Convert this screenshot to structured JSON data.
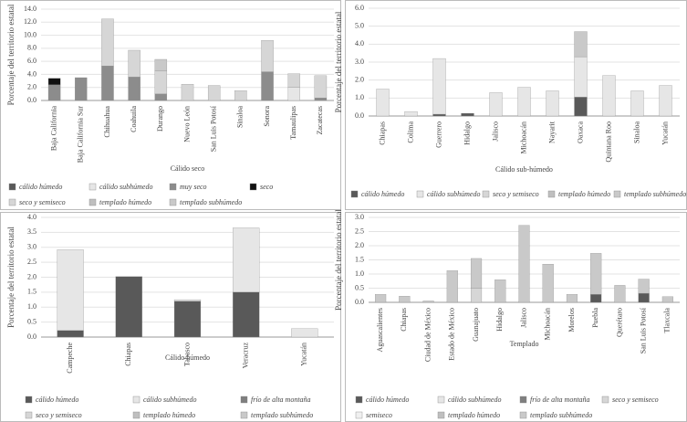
{
  "chart_data": [
    {
      "type": "bar",
      "stacked": true,
      "x_label": "Cálido seco",
      "y_label": "Porcentaje del territorio estatal",
      "categories": [
        "Baja California",
        "Baja California Sur",
        "Chihuahua",
        "Coahuila",
        "Durango",
        "Nuevo León",
        "San Luis Potosí",
        "Sinaloa",
        "Sonora",
        "Tamaulipas",
        "Zacatecas"
      ],
      "series": [
        {
          "name": "cálido húmedo",
          "color": "#595959",
          "values": [
            0,
            0,
            0,
            0,
            0,
            0,
            0,
            0,
            0,
            0,
            0
          ]
        },
        {
          "name": "cálido subhúmedo",
          "color": "#e6e6e6",
          "values": [
            0,
            0,
            0,
            0,
            0,
            0,
            0,
            0,
            0,
            2.0,
            0
          ]
        },
        {
          "name": "muy seco",
          "color": "#8c8c8c",
          "values": [
            2.4,
            3.5,
            5.3,
            3.6,
            1.0,
            0,
            0,
            0,
            4.4,
            0,
            0.4
          ]
        },
        {
          "name": "seco",
          "color": "#111111",
          "values": [
            1.0,
            0,
            0,
            0,
            0,
            0,
            0,
            0,
            0,
            0,
            0
          ]
        },
        {
          "name": "seco y semiseco",
          "color": "#d6d6d6",
          "values": [
            0,
            0,
            7.2,
            4.1,
            3.5,
            2.5,
            2.3,
            1.5,
            4.8,
            2.1,
            3.4
          ]
        },
        {
          "name": "templado húmedo",
          "color": "#bfbfbf",
          "values": [
            0,
            0,
            0,
            0,
            0,
            0,
            0,
            0,
            0,
            0,
            0
          ]
        },
        {
          "name": "templado subhúmedo",
          "color": "#c9c9c9",
          "values": [
            0,
            0,
            0,
            0,
            1.8,
            0,
            0,
            0,
            0,
            0,
            0
          ]
        }
      ],
      "ylim": [
        0,
        14
      ],
      "yticks": [
        {
          "value": 0,
          "label": "0.0"
        },
        {
          "value": 2,
          "label": "2.0"
        },
        {
          "value": 4,
          "label": "4.0"
        },
        {
          "value": 6,
          "label": "6.0"
        },
        {
          "value": 8,
          "label": "8.0"
        },
        {
          "value": 10,
          "label": "10.0"
        },
        {
          "value": 12,
          "label": "12.0"
        },
        {
          "value": 14,
          "label": "14.0"
        }
      ],
      "grid": true,
      "legend": "bottom"
    },
    {
      "type": "bar",
      "stacked": true,
      "x_label": "Cálido sub-húmedo",
      "y_label": "Porcentaje del territorio estatal",
      "categories": [
        "Chiapas",
        "Colima",
        "Guerrero",
        "Hidalgo",
        "Jalisco",
        "Michoacán",
        "Nayarit",
        "Oaxaca",
        "Quintana Roo",
        "Sinaloa",
        "Yucatán"
      ],
      "series": [
        {
          "name": "cálido húmedo",
          "color": "#595959",
          "values": [
            0,
            0,
            0.1,
            0.15,
            0,
            0,
            0,
            1.05,
            0,
            0,
            0
          ]
        },
        {
          "name": "cálido subhúmedo",
          "color": "#e6e6e6",
          "values": [
            1.5,
            0.25,
            3.1,
            0,
            1.3,
            1.6,
            1.4,
            2.25,
            2.25,
            1.4,
            1.7
          ]
        },
        {
          "name": "seco y semiseco",
          "color": "#d6d6d6",
          "values": [
            0,
            0,
            0,
            0,
            0,
            0,
            0,
            0,
            0,
            0,
            0
          ]
        },
        {
          "name": "templado húmedo",
          "color": "#bfbfbf",
          "values": [
            0,
            0,
            0,
            0,
            0,
            0,
            0,
            0,
            0,
            0,
            0
          ]
        },
        {
          "name": "templado subhúmedo",
          "color": "#c9c9c9",
          "values": [
            0,
            0,
            0,
            0,
            0,
            0,
            0,
            1.4,
            0,
            0,
            0
          ]
        }
      ],
      "ylim": [
        0,
        6
      ],
      "yticks": [
        {
          "value": 0,
          "label": "0.0"
        },
        {
          "value": 1,
          "label": "1.0"
        },
        {
          "value": 2,
          "label": "2.0"
        },
        {
          "value": 3,
          "label": "3.0"
        },
        {
          "value": 4,
          "label": "4.0"
        },
        {
          "value": 5,
          "label": "5.0"
        },
        {
          "value": 6,
          "label": "6.0"
        }
      ],
      "grid": true,
      "legend": "bottom"
    },
    {
      "type": "bar",
      "stacked": true,
      "x_label": "Cálido húmedo",
      "y_label": "Porcentaje del territorio estatal",
      "categories": [
        "Campeche",
        "Chiapas",
        "Tabasco",
        "Veracruz",
        "Yucatán"
      ],
      "series": [
        {
          "name": "cálido húmedo",
          "color": "#595959",
          "values": [
            0.22,
            2.02,
            1.2,
            1.5,
            0
          ]
        },
        {
          "name": "cálido subhúmedo",
          "color": "#e6e6e6",
          "values": [
            2.7,
            0,
            0.05,
            2.15,
            0.28
          ]
        },
        {
          "name": "frío de alta montaña",
          "color": "#7f7f7f",
          "values": [
            0,
            0,
            0,
            0,
            0
          ]
        },
        {
          "name": "seco y semiseco",
          "color": "#d6d6d6",
          "values": [
            0,
            0,
            0,
            0,
            0
          ]
        },
        {
          "name": "templado húmedo",
          "color": "#bfbfbf",
          "values": [
            0,
            0,
            0,
            0,
            0
          ]
        },
        {
          "name": "templado subhúmedo",
          "color": "#c9c9c9",
          "values": [
            0,
            0,
            0,
            0,
            0
          ]
        }
      ],
      "ylim": [
        0,
        4
      ],
      "yticks": [
        {
          "value": 0,
          "label": "0.0"
        },
        {
          "value": 0.5,
          "label": "0.5"
        },
        {
          "value": 1,
          "label": "1.0"
        },
        {
          "value": 1.5,
          "label": "1.5"
        },
        {
          "value": 2,
          "label": "2.0"
        },
        {
          "value": 2.5,
          "label": "2.5"
        },
        {
          "value": 3,
          "label": "3.0"
        },
        {
          "value": 3.5,
          "label": "3.5"
        },
        {
          "value": 4,
          "label": "4.0"
        }
      ],
      "grid": true,
      "legend": "bottom"
    },
    {
      "type": "bar",
      "stacked": true,
      "x_label": "Templado",
      "y_label": "Porcentaje del territorio estatal",
      "categories": [
        "Aguascalientes",
        "Chiapas",
        "Ciudad de México",
        "Estado de México",
        "Guanajuato",
        "Hidalgo",
        "Jalisco",
        "Michoacán",
        "Morelos",
        "Puebla",
        "Querétaro",
        "San Luis Potosí",
        "Tlaxcala"
      ],
      "series": [
        {
          "name": "cálido húmedo",
          "color": "#595959",
          "values": [
            0,
            0,
            0,
            0,
            0,
            0,
            0,
            0,
            0,
            0.28,
            0,
            0.32,
            0
          ]
        },
        {
          "name": "cálido subhúmedo",
          "color": "#e6e6e6",
          "values": [
            0,
            0,
            0,
            0,
            0,
            0,
            0,
            0,
            0,
            0,
            0,
            0,
            0
          ]
        },
        {
          "name": "frío de alta montaña",
          "color": "#7f7f7f",
          "values": [
            0,
            0,
            0,
            0,
            0,
            0,
            0,
            0,
            0,
            0,
            0,
            0,
            0
          ]
        },
        {
          "name": "seco y semiseco",
          "color": "#d6d6d6",
          "values": [
            0,
            0,
            0,
            0,
            0.5,
            0,
            0,
            0,
            0,
            0,
            0,
            0,
            0
          ]
        },
        {
          "name": "semiseco",
          "color": "#f0f0f0",
          "values": [
            0,
            0,
            0,
            0,
            0,
            0,
            0,
            0,
            0,
            0,
            0,
            0,
            0
          ]
        },
        {
          "name": "templado húmedo",
          "color": "#bfbfbf",
          "values": [
            0,
            0,
            0,
            0,
            0,
            0,
            0,
            0,
            0,
            0,
            0,
            0,
            0
          ]
        },
        {
          "name": "templado subhúmedo",
          "color": "#c9c9c9",
          "values": [
            0.28,
            0.22,
            0.05,
            1.12,
            1.05,
            0.8,
            2.72,
            1.35,
            0.28,
            1.45,
            0.6,
            0.5,
            0.2
          ]
        }
      ],
      "ylim": [
        0,
        3
      ],
      "yticks": [
        {
          "value": 0,
          "label": "0.0"
        },
        {
          "value": 0.5,
          "label": "0.5"
        },
        {
          "value": 1,
          "label": "1.0"
        },
        {
          "value": 1.5,
          "label": "1.5"
        },
        {
          "value": 2,
          "label": "2.0"
        },
        {
          "value": 2.5,
          "label": "2.5"
        },
        {
          "value": 3,
          "label": "3.0"
        }
      ],
      "grid": true,
      "legend": "bottom"
    }
  ]
}
